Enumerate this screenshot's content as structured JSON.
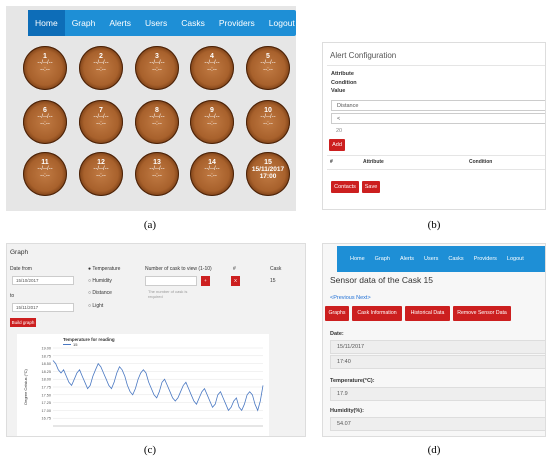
{
  "captions": {
    "a": "(a)",
    "b": "(b)",
    "c": "(c)",
    "d": "(d)"
  },
  "panel_a": {
    "nav": [
      "Home",
      "Graph",
      "Alerts",
      "Users",
      "Casks",
      "Providers",
      "Logout"
    ],
    "placeholder_line": "--/--/--",
    "placeholder_time": "--:--",
    "casks": [
      "1",
      "2",
      "3",
      "4",
      "5",
      "6",
      "7",
      "8",
      "9",
      "10",
      "11",
      "12",
      "13",
      "14",
      "15"
    ],
    "cask15_date": "15/11/2017",
    "cask15_time": "17:00"
  },
  "panel_b": {
    "title": "Alert Configuration",
    "attribute_label": "Attribute",
    "condition_label": "Condition",
    "value_label": "Value",
    "attribute_value": "Distance",
    "condition_value": "<",
    "value_value": "20",
    "add_button": "Add",
    "col_hash": "#",
    "col_attribute": "Attribute",
    "col_condition": "Condition",
    "contacts_button": "Contacts",
    "save_button": "Save"
  },
  "panel_c": {
    "title": "Graph",
    "date_from_label": "Date from",
    "date_from": "15/10/2017",
    "to_label": "to",
    "date_to": "15/11/2017",
    "build_button": "Build graph",
    "radios": [
      "Temperature",
      "Humidity",
      "Distance",
      "Light"
    ],
    "casks_label": "Number of cask to view (1-10)",
    "required_note": "The number of cask is required",
    "plus_button": "+",
    "hash_label": "#",
    "x_button": "X",
    "cask_label": "Cask",
    "cask_value": "15"
  },
  "panel_d": {
    "nav": [
      "Home",
      "Graph",
      "Alerts",
      "Users",
      "Casks",
      "Providers",
      "Logout"
    ],
    "heading": "Sensor data of the Cask 15",
    "pager": "<Previous Next>",
    "tabs": [
      "Graphs",
      "Cask Information",
      "Historical Data",
      "Remove Sensor Data"
    ],
    "date_label": "Date:",
    "date_value": "15/11/2017",
    "time_value": "17:40",
    "temp_label": "Temperature(°C):",
    "temp_value": "17.9",
    "hum_label": "Humidity(%):",
    "hum_value": "54.07"
  },
  "chart_data": {
    "type": "line",
    "title": "Temperature for reading",
    "ylabel": "Degree Celsius (°C)",
    "xlabel": "",
    "legend": "15",
    "ylim": [
      16.5,
      19.0
    ],
    "yticks": [
      "19.00",
      "18.75",
      "18.50",
      "18.25",
      "18.00",
      "17.75",
      "17.50",
      "17.25",
      "17.00",
      "16.75"
    ],
    "color": "#4a78c2",
    "values": [
      18.6,
      18.5,
      18.3,
      18.2,
      18.3,
      18.1,
      17.9,
      17.8,
      18.0,
      18.2,
      18.3,
      18.1,
      17.9,
      17.7,
      17.8,
      18.1,
      18.3,
      18.5,
      18.4,
      18.2,
      18.0,
      17.8,
      17.7,
      17.9,
      18.2,
      18.4,
      18.3,
      18.1,
      17.8,
      17.6,
      17.5,
      17.7,
      18.0,
      18.2,
      18.3,
      18.2,
      17.9,
      17.7,
      17.5,
      17.4,
      17.6,
      17.9,
      18.0,
      17.8,
      17.6,
      17.4,
      17.3,
      17.4,
      17.6,
      17.8,
      17.9,
      17.7,
      17.5,
      17.3,
      17.2,
      17.4,
      17.6,
      17.7,
      17.5,
      17.3,
      17.1,
      17.2,
      17.5,
      17.6,
      17.4,
      17.2,
      17.0,
      17.1,
      17.3,
      17.4,
      17.1,
      17.0,
      17.2,
      17.5,
      17.6,
      17.5,
      17.2,
      17.0,
      17.3,
      17.8
    ]
  }
}
